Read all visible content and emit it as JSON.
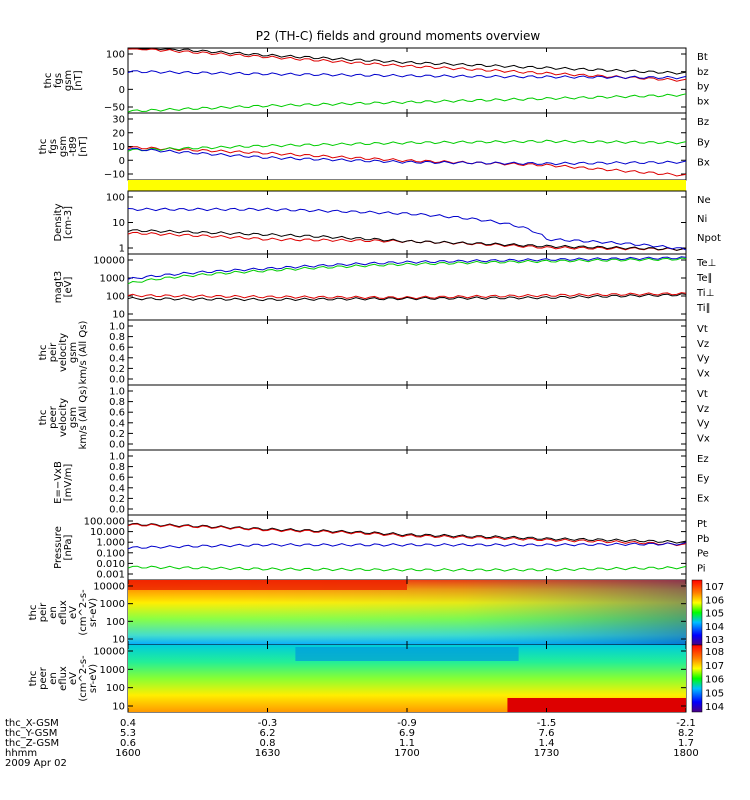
{
  "title": "P2 (TH-C) fields and ground moments overview",
  "colors": {
    "black": "#000000",
    "red": "#dd0000",
    "green": "#00cc00",
    "blue": "#0000cc",
    "yellow": "#ffff00"
  },
  "panels": [
    {
      "id": "fgs",
      "ylabel": [
        "thc",
        "fgs",
        "gsm",
        "[nT]"
      ],
      "ytick_labels": [
        "100",
        "50",
        "0",
        "−50"
      ],
      "legend": [
        {
          "label": "Bt",
          "color": "black"
        },
        {
          "label": "bz",
          "color": "red"
        },
        {
          "label": "by",
          "color": "green"
        },
        {
          "label": "bx",
          "color": "blue"
        }
      ]
    },
    {
      "id": "fgs_dsl",
      "ylabel": [
        "thc",
        "fgs",
        "gsm",
        "-t89",
        "[nT]"
      ],
      "ytick_labels": [
        "30",
        "20",
        "10",
        "0",
        "−10"
      ],
      "legend": [
        {
          "label": "Bz",
          "color": "red"
        },
        {
          "label": "By",
          "color": "green"
        },
        {
          "label": "Bx",
          "color": "blue"
        }
      ]
    },
    {
      "id": "density",
      "ylabel": [
        "Density",
        "[cm-3]"
      ],
      "ytick_labels": [
        "100",
        "10",
        "1"
      ],
      "legend": [
        {
          "label": "Ne",
          "color": "red"
        },
        {
          "label": "Ni",
          "color": "black"
        },
        {
          "label": "Npot",
          "color": "blue"
        }
      ]
    },
    {
      "id": "temp",
      "ylabel": [
        "magt3",
        "[eV]"
      ],
      "ytick_labels": [
        "10000",
        "1000",
        "100",
        "10"
      ],
      "legend": [
        {
          "label": "Te⊥",
          "color": "red"
        },
        {
          "label": "Te∥",
          "color": "black"
        },
        {
          "label": "Ti⊥",
          "color": "blue"
        },
        {
          "label": "Ti∥",
          "color": "green"
        }
      ]
    },
    {
      "id": "peir_vel",
      "ylabel": [
        "thc",
        "peir",
        "velocity",
        "gsm",
        "km/s (All Qs)"
      ],
      "ytick_labels": [
        "1.0",
        "0.8",
        "0.6",
        "0.4",
        "0.2",
        "0.0"
      ],
      "legend": [
        {
          "label": "Vt",
          "color": "black"
        },
        {
          "label": "Vz",
          "color": "red"
        },
        {
          "label": "Vy",
          "color": "green"
        },
        {
          "label": "Vx",
          "color": "blue"
        }
      ]
    },
    {
      "id": "peer_vel",
      "ylabel": [
        "thc",
        "peer",
        "velocity",
        "gsm",
        "km/s (All Qs)"
      ],
      "ytick_labels": [
        "1.0",
        "0.8",
        "0.6",
        "0.4",
        "0.2",
        "0.0"
      ],
      "legend": [
        {
          "label": "Vt",
          "color": "black"
        },
        {
          "label": "Vz",
          "color": "red"
        },
        {
          "label": "Vy",
          "color": "green"
        },
        {
          "label": "Vx",
          "color": "blue"
        }
      ]
    },
    {
      "id": "efield",
      "ylabel": [
        "E=−VxB",
        "[mV/m]"
      ],
      "ytick_labels": [
        "1.0",
        "0.8",
        "0.6",
        "0.4",
        "0.2",
        "0.0"
      ],
      "legend": [
        {
          "label": "Ez",
          "color": "red"
        },
        {
          "label": "Ey",
          "color": "green"
        },
        {
          "label": "Ex",
          "color": "blue"
        }
      ]
    },
    {
      "id": "pressure",
      "ylabel": [
        "Pressure",
        "[nPa]"
      ],
      "ytick_labels": [
        "100.000",
        "10.000",
        "1.000",
        "0.100",
        "0.010",
        "0.001"
      ],
      "legend": [
        {
          "label": "Pt",
          "color": "black"
        },
        {
          "label": "Pb",
          "color": "red"
        },
        {
          "label": "Pe",
          "color": "green"
        },
        {
          "label": "Pi",
          "color": "blue"
        }
      ]
    },
    {
      "id": "peir_spec",
      "ylabel": [
        "thc",
        "peir",
        "en",
        "eflux",
        "eV",
        "(cm^2-s-",
        "sr-eV)"
      ],
      "ytick_labels": [
        "10000",
        "1000",
        "100",
        "10"
      ],
      "colorbar_labels": [
        "10^7",
        "10^6",
        "10^5",
        "10^4",
        "10^3"
      ]
    },
    {
      "id": "peer_spec",
      "ylabel": [
        "thc",
        "peer",
        "en",
        "eflux",
        "eV",
        "(cm^2-s-",
        "sr-eV)"
      ],
      "ytick_labels": [
        "10000",
        "1000",
        "100",
        "10"
      ],
      "colorbar_labels": [
        "10^8",
        "10^7",
        "10^6",
        "10^5",
        "10^4"
      ]
    }
  ],
  "xaxis": {
    "rows": [
      {
        "label": "thc_X-GSM",
        "values": [
          "0.4",
          "-0.3",
          "-0.9",
          "-1.5",
          "-2.1"
        ]
      },
      {
        "label": "thc_Y-GSM",
        "values": [
          "5.3",
          "6.2",
          "6.9",
          "7.6",
          "8.2"
        ]
      },
      {
        "label": "thc_Z-GSM",
        "values": [
          "0.6",
          "0.8",
          "1.1",
          "1.4",
          "1.7"
        ]
      },
      {
        "label": "hhmm",
        "values": [
          "1600",
          "1630",
          "1700",
          "1730",
          "1800"
        ]
      }
    ],
    "date": "2009 Apr 02"
  },
  "chart_data": {
    "type": "line",
    "title": "P2 (TH-C) fields and ground moments overview",
    "x": [
      "1600",
      "1630",
      "1700",
      "1730",
      "1800"
    ],
    "xlabel": "hhmm",
    "panels": [
      {
        "name": "fgs gsm",
        "ylim": [
          -70,
          110
        ],
        "series": [
          {
            "name": "Bt",
            "values": [
              115,
              90,
              70,
              55,
              40
            ]
          },
          {
            "name": "bz",
            "values": [
              110,
              85,
              60,
              40,
              20
            ]
          },
          {
            "name": "by",
            "values": [
              -65,
              -50,
              -40,
              -30,
              -20
            ]
          },
          {
            "name": "bx",
            "values": [
              45,
              38,
              33,
              30,
              28
            ]
          }
        ]
      },
      {
        "name": "fgs gsm-t89",
        "ylim": [
          -15,
          30
        ],
        "series": [
          {
            "name": "Bz",
            "values": [
              7,
              3,
              -2,
              -5,
              -12
            ]
          },
          {
            "name": "By",
            "values": [
              5,
              8,
              10,
              11,
              10
            ]
          },
          {
            "name": "Bx",
            "values": [
              6,
              0,
              -3,
              -4,
              -3
            ]
          }
        ]
      },
      {
        "name": "Density",
        "scale": "log",
        "ylim": [
          0.3,
          300
        ],
        "series": [
          {
            "name": "Ne",
            "values": [
              3,
              1.5,
              1.2,
              0.6,
              0.5
            ]
          },
          {
            "name": "Ni",
            "values": [
              4,
              2.5,
              1.2,
              0.7,
              0.5
            ]
          },
          {
            "name": "Npot",
            "values": [
              40,
              40,
              25,
              1.5,
              0.5
            ]
          }
        ]
      },
      {
        "name": "magt3",
        "scale": "log",
        "ylim": [
          10,
          12000
        ],
        "series": [
          {
            "name": "Te⊥",
            "values": [
              140,
              120,
              110,
              140,
              170
            ]
          },
          {
            "name": "Te∥",
            "values": [
              100,
              90,
              100,
              110,
              150
            ]
          },
          {
            "name": "Ti⊥",
            "values": [
              800,
              2500,
              5000,
              6500,
              8000
            ]
          },
          {
            "name": "Ti∥",
            "values": [
              500,
              2000,
              4000,
              5500,
              7000
            ]
          }
        ]
      },
      {
        "name": "Pressure",
        "scale": "log",
        "ylim": [
          0.001,
          100
        ],
        "series": [
          {
            "name": "Pt",
            "values": [
              20,
              8,
              3,
              1.5,
              0.8
            ]
          },
          {
            "name": "Pb",
            "values": [
              18,
              7,
              2.5,
              1.2,
              0.5
            ]
          },
          {
            "name": "Pe",
            "values": [
              0.01,
              0.007,
              0.006,
              0.006,
              0.009
            ]
          },
          {
            "name": "Pi",
            "values": [
              0.3,
              0.5,
              0.5,
              0.5,
              0.6
            ]
          }
        ]
      }
    ]
  }
}
